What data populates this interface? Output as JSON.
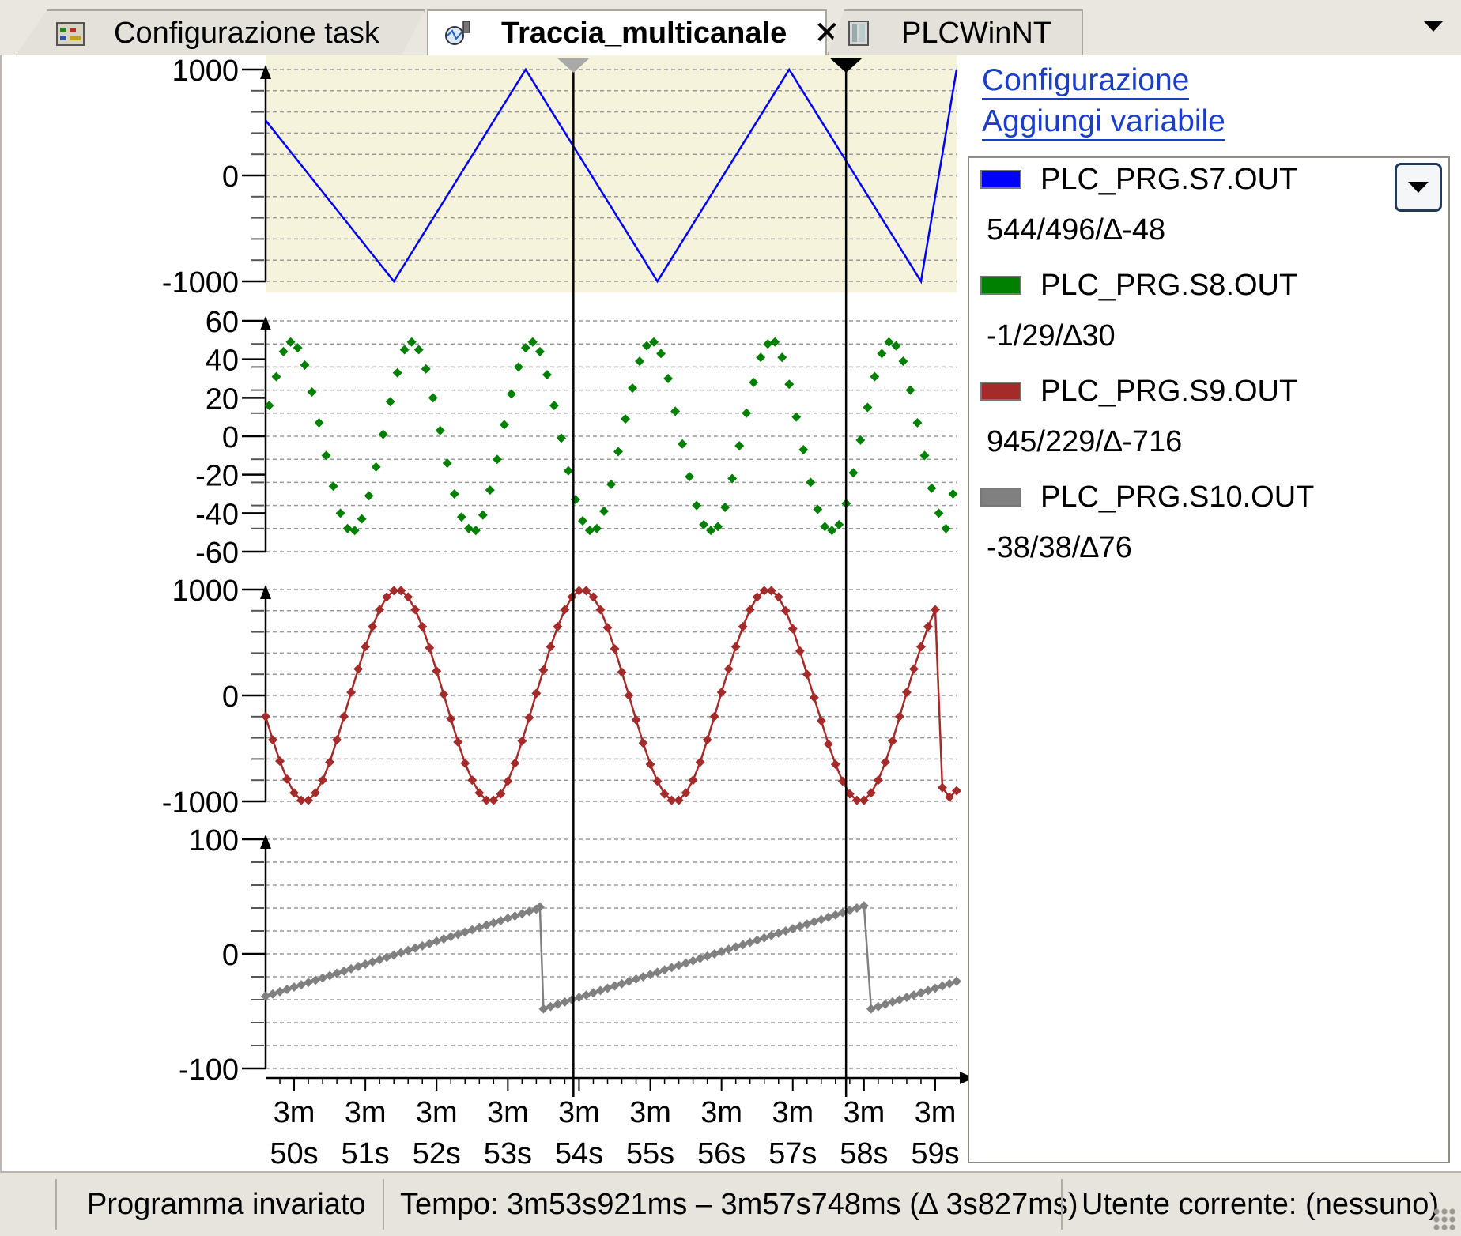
{
  "tabs": [
    {
      "label": "Configurazione task",
      "active": false,
      "icon": "task-config-icon"
    },
    {
      "label": "Traccia_multicanale",
      "active": true,
      "icon": "trace-icon",
      "close": "✕"
    },
    {
      "label": "PLCWinNT",
      "active": false,
      "icon": "plc-device-icon"
    }
  ],
  "links": {
    "config": "Configurazione",
    "add_variable": "Aggiungi variabile"
  },
  "legend": [
    {
      "name": "PLC_PRG.S7.OUT",
      "value": "544/496/∆-48",
      "color": "#0000ff"
    },
    {
      "name": "PLC_PRG.S8.OUT",
      "value": "-1/29/∆30",
      "color": "#008000"
    },
    {
      "name": "PLC_PRG.S9.OUT",
      "value": "945/229/∆-716",
      "color": "#a52a2a"
    },
    {
      "name": "PLC_PRG.S10.OUT",
      "value": "-38/38/∆76",
      "color": "#808080"
    }
  ],
  "status": {
    "program": "Programma invariato",
    "time": "Tempo: 3m53s921ms – 3m57s748ms (∆ 3s827ms)",
    "user": "Utente corrente: (nessuno)"
  },
  "chart_data": {
    "type": "line",
    "x_unit": "s",
    "x_ticks": [
      "3m\n50s",
      "3m\n51s",
      "3m\n52s",
      "3m\n53s",
      "3m\n54s",
      "3m\n55s",
      "3m\n56s",
      "3m\n57s",
      "3m\n58s",
      "3m\n59s"
    ],
    "x_range": [
      229.6,
      239.3
    ],
    "cursors": [
      233.921,
      237.748
    ],
    "highlighted_panel": 0,
    "highlight_color": "#f5f3dc",
    "panels": [
      {
        "yticks": [
          "1000",
          "0",
          "-1000"
        ],
        "ylim": [
          -1000,
          1000
        ],
        "series": {
          "name": "PLC_PRG.S7.OUT",
          "color": "#0000ff",
          "markers": false,
          "x": [
            229.6,
            231.4,
            233.25,
            235.1,
            236.95,
            238.8,
            239.3
          ],
          "y": [
            520,
            -1000,
            1000,
            -1000,
            1000,
            -1000,
            1000
          ]
        }
      },
      {
        "yticks": [
          "60",
          "40",
          "20",
          "0",
          "-20",
          "-40",
          "-60"
        ],
        "ylim": [
          -60,
          60
        ],
        "series": {
          "name": "PLC_PRG.S8.OUT",
          "color": "#008000",
          "markers": true,
          "line": false,
          "x": [
            229.65,
            229.75,
            229.85,
            229.95,
            230.05,
            230.15,
            230.25,
            230.35,
            230.45,
            230.55,
            230.65,
            230.75,
            230.85,
            230.95,
            231.05,
            231.15,
            231.25,
            231.35,
            231.45,
            231.55,
            231.65,
            231.75,
            231.85,
            231.95,
            232.05,
            232.15,
            232.25,
            232.35,
            232.45,
            232.55,
            232.65,
            232.75,
            232.85,
            232.95,
            233.05,
            233.15,
            233.25,
            233.35,
            233.45,
            233.55,
            233.65,
            233.75,
            233.85,
            233.95,
            234.05,
            234.15,
            234.25,
            234.35,
            234.45,
            234.55,
            234.65,
            234.75,
            234.85,
            234.95,
            235.05,
            235.15,
            235.25,
            235.35,
            235.45,
            235.55,
            235.65,
            235.75,
            235.85,
            235.95,
            236.05,
            236.15,
            236.25,
            236.35,
            236.45,
            236.55,
            236.65,
            236.75,
            236.85,
            236.95,
            237.05,
            237.15,
            237.25,
            237.35,
            237.45,
            237.55,
            237.65,
            237.75,
            237.85,
            237.95,
            238.05,
            238.15,
            238.25,
            238.35,
            238.45,
            238.55,
            238.65,
            238.75,
            238.85,
            238.95,
            239.05,
            239.15,
            239.25
          ],
          "y": [
            16,
            31,
            44,
            49,
            46,
            37,
            23,
            7,
            -10,
            -26,
            -40,
            -48,
            -49,
            -43,
            -31,
            -16,
            1,
            18,
            33,
            45,
            49,
            45,
            35,
            20,
            3,
            -14,
            -30,
            -42,
            -48,
            -49,
            -41,
            -28,
            -12,
            6,
            22,
            36,
            46,
            49,
            44,
            32,
            16,
            -1,
            -18,
            -33,
            -44,
            -49,
            -48,
            -39,
            -25,
            -8,
            9,
            25,
            39,
            47,
            49,
            43,
            30,
            13,
            -4,
            -21,
            -36,
            -46,
            -49,
            -47,
            -37,
            -22,
            -5,
            12,
            28,
            41,
            48,
            49,
            41,
            27,
            10,
            -7,
            -24,
            -38,
            -47,
            -49,
            -46,
            -35,
            -19,
            -2,
            15,
            31,
            43,
            49,
            47,
            39,
            24,
            7,
            -10,
            -27,
            -40,
            -48,
            -30
          ]
        }
      },
      {
        "yticks": [
          "1000",
          "0",
          "-1000"
        ],
        "ylim": [
          -1000,
          1000
        ],
        "series": {
          "name": "PLC_PRG.S9.OUT",
          "color": "#a52a2a",
          "markers": true,
          "line": true,
          "x": [
            229.6,
            229.7,
            229.8,
            229.9,
            230.0,
            230.1,
            230.2,
            230.3,
            230.4,
            230.5,
            230.6,
            230.7,
            230.8,
            230.9,
            231.0,
            231.1,
            231.2,
            231.3,
            231.4,
            231.5,
            231.6,
            231.7,
            231.8,
            231.9,
            232.0,
            232.1,
            232.2,
            232.3,
            232.4,
            232.5,
            232.6,
            232.7,
            232.8,
            232.9,
            233.0,
            233.1,
            233.2,
            233.3,
            233.4,
            233.5,
            233.6,
            233.7,
            233.8,
            233.9,
            234.0,
            234.1,
            234.2,
            234.3,
            234.4,
            234.5,
            234.6,
            234.7,
            234.8,
            234.9,
            235.0,
            235.1,
            235.2,
            235.3,
            235.4,
            235.5,
            235.6,
            235.7,
            235.8,
            235.9,
            236.0,
            236.1,
            236.2,
            236.3,
            236.4,
            236.5,
            236.6,
            236.7,
            236.8,
            236.9,
            237.0,
            237.1,
            237.2,
            237.3,
            237.4,
            237.5,
            237.6,
            237.7,
            237.8,
            237.9,
            238.0,
            238.1,
            238.2,
            238.3,
            238.4,
            238.5,
            238.6,
            238.7,
            238.8,
            238.9,
            239.0,
            239.1,
            239.2,
            239.3
          ],
          "y": [
            -200,
            -420,
            -620,
            -790,
            -920,
            -990,
            -990,
            -920,
            -800,
            -630,
            -420,
            -200,
            30,
            250,
            460,
            650,
            810,
            930,
            990,
            990,
            930,
            810,
            650,
            450,
            230,
            10,
            -220,
            -440,
            -640,
            -800,
            -920,
            -990,
            -990,
            -930,
            -810,
            -640,
            -430,
            -210,
            20,
            240,
            460,
            650,
            810,
            930,
            990,
            990,
            930,
            810,
            640,
            440,
            220,
            0,
            -230,
            -450,
            -650,
            -810,
            -930,
            -990,
            -990,
            -920,
            -800,
            -630,
            -420,
            -200,
            30,
            250,
            460,
            650,
            810,
            930,
            990,
            990,
            930,
            800,
            630,
            420,
            200,
            -20,
            -240,
            -460,
            -650,
            -810,
            -930,
            -990,
            -990,
            -920,
            -800,
            -630,
            -430,
            -200,
            30,
            250,
            460,
            650,
            810,
            -870,
            -960,
            -900
          ]
        }
      },
      {
        "yticks": [
          "100",
          "0",
          "-100"
        ],
        "ylim": [
          -100,
          100
        ],
        "series": {
          "name": "PLC_PRG.S10.OUT",
          "color": "#808080",
          "markers": true,
          "line": true,
          "x": [
            229.6,
            229.7,
            229.8,
            229.9,
            230.0,
            230.1,
            230.2,
            230.3,
            230.4,
            230.5,
            230.6,
            230.7,
            230.8,
            230.9,
            231.0,
            231.1,
            231.2,
            231.3,
            231.4,
            231.5,
            231.6,
            231.7,
            231.8,
            231.9,
            232.0,
            232.1,
            232.2,
            232.3,
            232.4,
            232.5,
            232.6,
            232.7,
            232.8,
            232.9,
            233.0,
            233.1,
            233.2,
            233.3,
            233.4,
            233.45,
            233.5,
            233.6,
            233.7,
            233.8,
            233.9,
            234.0,
            234.1,
            234.2,
            234.3,
            234.4,
            234.5,
            234.6,
            234.7,
            234.8,
            234.9,
            235.0,
            235.1,
            235.2,
            235.3,
            235.4,
            235.5,
            235.6,
            235.7,
            235.8,
            235.9,
            236.0,
            236.1,
            236.2,
            236.3,
            236.4,
            236.5,
            236.6,
            236.7,
            236.8,
            236.9,
            237.0,
            237.1,
            237.2,
            237.3,
            237.4,
            237.5,
            237.6,
            237.7,
            237.8,
            237.9,
            238.0,
            238.1,
            238.2,
            238.3,
            238.4,
            238.5,
            238.6,
            238.7,
            238.8,
            238.9,
            239.0,
            239.1,
            239.2,
            239.3
          ],
          "y": [
            -37,
            -35,
            -33,
            -31,
            -29,
            -27,
            -25,
            -23,
            -21,
            -19,
            -17,
            -15,
            -13,
            -11,
            -9,
            -7,
            -5,
            -3,
            -1,
            1,
            3,
            5,
            7,
            9,
            11,
            13,
            15,
            17,
            19,
            21,
            23,
            25,
            27,
            29,
            31,
            33,
            35,
            37,
            39,
            41,
            -48,
            -46,
            -44,
            -42,
            -40,
            -38,
            -36,
            -34,
            -32,
            -30,
            -28,
            -26,
            -24,
            -22,
            -20,
            -18,
            -16,
            -14,
            -12,
            -10,
            -8,
            -6,
            -4,
            -2,
            0,
            2,
            4,
            6,
            8,
            10,
            12,
            14,
            16,
            18,
            20,
            22,
            24,
            26,
            28,
            30,
            32,
            34,
            36,
            38,
            40,
            42,
            -48,
            -46,
            -44,
            -42,
            -40,
            -38,
            -36,
            -34,
            -32,
            -30,
            -28,
            -26,
            -24
          ]
        }
      }
    ]
  }
}
